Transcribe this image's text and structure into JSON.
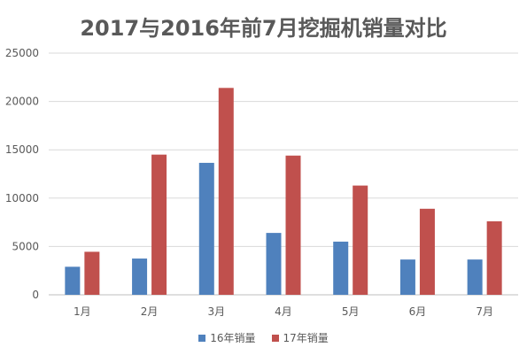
{
  "chart_data": {
    "type": "bar",
    "title": "2017与2016年前7月挖掘机销量对比",
    "xlabel": "",
    "ylabel": "",
    "categories": [
      "1月",
      "2月",
      "3月",
      "4月",
      "5月",
      "6月",
      "7月"
    ],
    "series": [
      {
        "name": "16年销量",
        "color": "#4F81BD",
        "values": [
          2900,
          3750,
          13650,
          6400,
          5500,
          3650,
          3650
        ]
      },
      {
        "name": "17年销量",
        "color": "#C0504D",
        "values": [
          4450,
          14500,
          21400,
          14400,
          11300,
          8900,
          7600
        ]
      }
    ],
    "ylim": [
      0,
      25000
    ],
    "yticks": [
      "0",
      "5000",
      "10000",
      "15000",
      "20000",
      "25000"
    ],
    "grid": true,
    "legend": "bottom-center"
  }
}
